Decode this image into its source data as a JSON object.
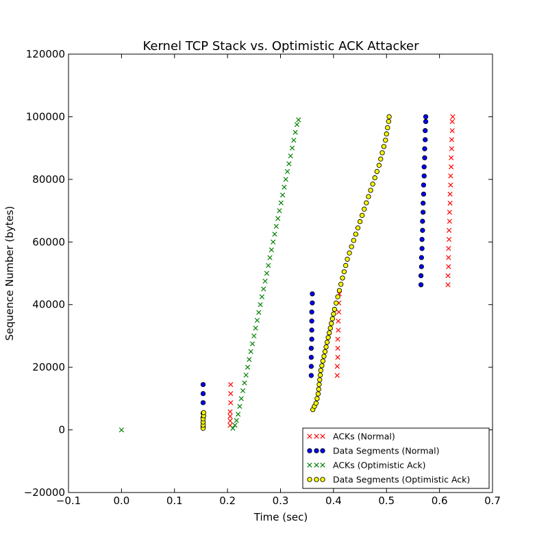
{
  "chart_data": {
    "type": "scatter",
    "title": "Kernel TCP Stack vs. Optimistic ACK Attacker",
    "xlabel": "Time (sec)",
    "ylabel": "Sequence Number (bytes)",
    "xlim": [
      -0.1,
      0.7
    ],
    "ylim": [
      -20000,
      120000
    ],
    "xticks": [
      -0.1,
      0.0,
      0.1,
      0.2,
      0.3,
      0.4,
      0.5,
      0.6,
      0.7
    ],
    "xtick_labels": [
      "−0.1",
      "0.0",
      "0.1",
      "0.2",
      "0.3",
      "0.4",
      "0.5",
      "0.6",
      "0.7"
    ],
    "yticks": [
      -20000,
      0,
      20000,
      40000,
      60000,
      80000,
      100000,
      120000
    ],
    "ytick_labels": [
      "−20000",
      "0",
      "20000",
      "40000",
      "60000",
      "80000",
      "100000",
      "120000"
    ],
    "grid": false,
    "legend_position": "lower-right",
    "series": [
      {
        "name": "ACKs (Normal)",
        "marker": "x",
        "color": "#ff0000",
        "points": [
          [
            0.205,
            1448
          ],
          [
            0.205,
            2896
          ],
          [
            0.205,
            4344
          ],
          [
            0.205,
            5792
          ],
          [
            0.206,
            8688
          ],
          [
            0.206,
            11584
          ],
          [
            0.206,
            14480
          ],
          [
            0.407,
            17376
          ],
          [
            0.407,
            20272
          ],
          [
            0.408,
            23168
          ],
          [
            0.408,
            26064
          ],
          [
            0.408,
            28960
          ],
          [
            0.409,
            31856
          ],
          [
            0.409,
            34752
          ],
          [
            0.41,
            37648
          ],
          [
            0.41,
            40544
          ],
          [
            0.411,
            43440
          ],
          [
            0.616,
            46336
          ],
          [
            0.616,
            49232
          ],
          [
            0.617,
            52128
          ],
          [
            0.617,
            55024
          ],
          [
            0.617,
            57920
          ],
          [
            0.618,
            60816
          ],
          [
            0.618,
            63712
          ],
          [
            0.619,
            66608
          ],
          [
            0.619,
            69504
          ],
          [
            0.62,
            72400
          ],
          [
            0.62,
            75296
          ],
          [
            0.621,
            78192
          ],
          [
            0.621,
            81088
          ],
          [
            0.622,
            83984
          ],
          [
            0.622,
            86880
          ],
          [
            0.623,
            89776
          ],
          [
            0.623,
            92672
          ],
          [
            0.624,
            95568
          ],
          [
            0.624,
            98464
          ],
          [
            0.625,
            100000
          ]
        ]
      },
      {
        "name": "Data Segments (Normal)",
        "marker": "o",
        "color": "#0000ff",
        "points": [
          [
            0.154,
            1000
          ],
          [
            0.154,
            2448
          ],
          [
            0.154,
            3896
          ],
          [
            0.154,
            5344
          ],
          [
            0.154,
            8688
          ],
          [
            0.154,
            11584
          ],
          [
            0.154,
            14480
          ],
          [
            0.358,
            17376
          ],
          [
            0.358,
            20272
          ],
          [
            0.358,
            23168
          ],
          [
            0.358,
            26064
          ],
          [
            0.359,
            28960
          ],
          [
            0.359,
            31856
          ],
          [
            0.359,
            34752
          ],
          [
            0.359,
            37648
          ],
          [
            0.36,
            40544
          ],
          [
            0.36,
            43440
          ],
          [
            0.565,
            46336
          ],
          [
            0.565,
            49232
          ],
          [
            0.566,
            52128
          ],
          [
            0.566,
            55024
          ],
          [
            0.567,
            57920
          ],
          [
            0.567,
            60816
          ],
          [
            0.568,
            63712
          ],
          [
            0.568,
            66608
          ],
          [
            0.569,
            69504
          ],
          [
            0.569,
            72400
          ],
          [
            0.57,
            75296
          ],
          [
            0.57,
            78192
          ],
          [
            0.571,
            81088
          ],
          [
            0.571,
            83984
          ],
          [
            0.572,
            86880
          ],
          [
            0.572,
            89776
          ],
          [
            0.573,
            92672
          ],
          [
            0.573,
            95568
          ],
          [
            0.574,
            98464
          ],
          [
            0.574,
            100000
          ]
        ]
      },
      {
        "name": "ACKs (Optimistic Ack)",
        "marker": "x",
        "color": "#008000",
        "points": [
          [
            0.0,
            0
          ],
          [
            0.21,
            500
          ],
          [
            0.214,
            1500
          ],
          [
            0.217,
            3000
          ],
          [
            0.22,
            5000
          ],
          [
            0.223,
            7500
          ],
          [
            0.226,
            10000
          ],
          [
            0.229,
            12500
          ],
          [
            0.232,
            15000
          ],
          [
            0.235,
            17500
          ],
          [
            0.238,
            20000
          ],
          [
            0.241,
            22500
          ],
          [
            0.244,
            25000
          ],
          [
            0.247,
            27500
          ],
          [
            0.25,
            30000
          ],
          [
            0.253,
            32500
          ],
          [
            0.256,
            35000
          ],
          [
            0.259,
            37500
          ],
          [
            0.262,
            40000
          ],
          [
            0.265,
            42500
          ],
          [
            0.268,
            45000
          ],
          [
            0.271,
            47500
          ],
          [
            0.274,
            50000
          ],
          [
            0.277,
            52500
          ],
          [
            0.28,
            55000
          ],
          [
            0.283,
            57500
          ],
          [
            0.286,
            60000
          ],
          [
            0.289,
            62500
          ],
          [
            0.292,
            65000
          ],
          [
            0.295,
            67500
          ],
          [
            0.298,
            70000
          ],
          [
            0.301,
            72500
          ],
          [
            0.304,
            75000
          ],
          [
            0.307,
            77500
          ],
          [
            0.31,
            80000
          ],
          [
            0.313,
            82500
          ],
          [
            0.316,
            85000
          ],
          [
            0.319,
            87500
          ],
          [
            0.322,
            90000
          ],
          [
            0.325,
            92500
          ],
          [
            0.328,
            95000
          ],
          [
            0.331,
            97500
          ],
          [
            0.334,
            99000
          ]
        ]
      },
      {
        "name": "Data Segments (Optimistic Ack)",
        "marker": "o",
        "color": "#ffff00",
        "points": [
          [
            0.154,
            500
          ],
          [
            0.154,
            1500
          ],
          [
            0.154,
            2500
          ],
          [
            0.154,
            3500
          ],
          [
            0.155,
            4500
          ],
          [
            0.155,
            5500
          ],
          [
            0.361,
            6500
          ],
          [
            0.364,
            7500
          ],
          [
            0.367,
            8500
          ],
          [
            0.369,
            10000
          ],
          [
            0.371,
            11500
          ],
          [
            0.372,
            13000
          ],
          [
            0.373,
            14500
          ],
          [
            0.374,
            16000
          ],
          [
            0.375,
            17500
          ],
          [
            0.376,
            19000
          ],
          [
            0.378,
            20500
          ],
          [
            0.38,
            22000
          ],
          [
            0.382,
            23500
          ],
          [
            0.384,
            25000
          ],
          [
            0.386,
            26500
          ],
          [
            0.388,
            28000
          ],
          [
            0.39,
            29500
          ],
          [
            0.392,
            31000
          ],
          [
            0.394,
            32500
          ],
          [
            0.396,
            34000
          ],
          [
            0.398,
            35500
          ],
          [
            0.4,
            37000
          ],
          [
            0.402,
            38500
          ],
          [
            0.405,
            40500
          ],
          [
            0.408,
            42500
          ],
          [
            0.411,
            44500
          ],
          [
            0.414,
            46500
          ],
          [
            0.417,
            48500
          ],
          [
            0.42,
            50500
          ],
          [
            0.423,
            52500
          ],
          [
            0.426,
            54500
          ],
          [
            0.43,
            56500
          ],
          [
            0.434,
            58500
          ],
          [
            0.438,
            60500
          ],
          [
            0.442,
            62500
          ],
          [
            0.446,
            64500
          ],
          [
            0.45,
            66500
          ],
          [
            0.454,
            68500
          ],
          [
            0.458,
            70500
          ],
          [
            0.462,
            72500
          ],
          [
            0.466,
            74500
          ],
          [
            0.47,
            76500
          ],
          [
            0.474,
            78500
          ],
          [
            0.478,
            80500
          ],
          [
            0.482,
            82500
          ],
          [
            0.486,
            84500
          ],
          [
            0.489,
            86500
          ],
          [
            0.492,
            88500
          ],
          [
            0.495,
            90500
          ],
          [
            0.498,
            92500
          ],
          [
            0.5,
            94500
          ],
          [
            0.502,
            96500
          ],
          [
            0.504,
            98500
          ],
          [
            0.505,
            100000
          ]
        ]
      }
    ]
  }
}
